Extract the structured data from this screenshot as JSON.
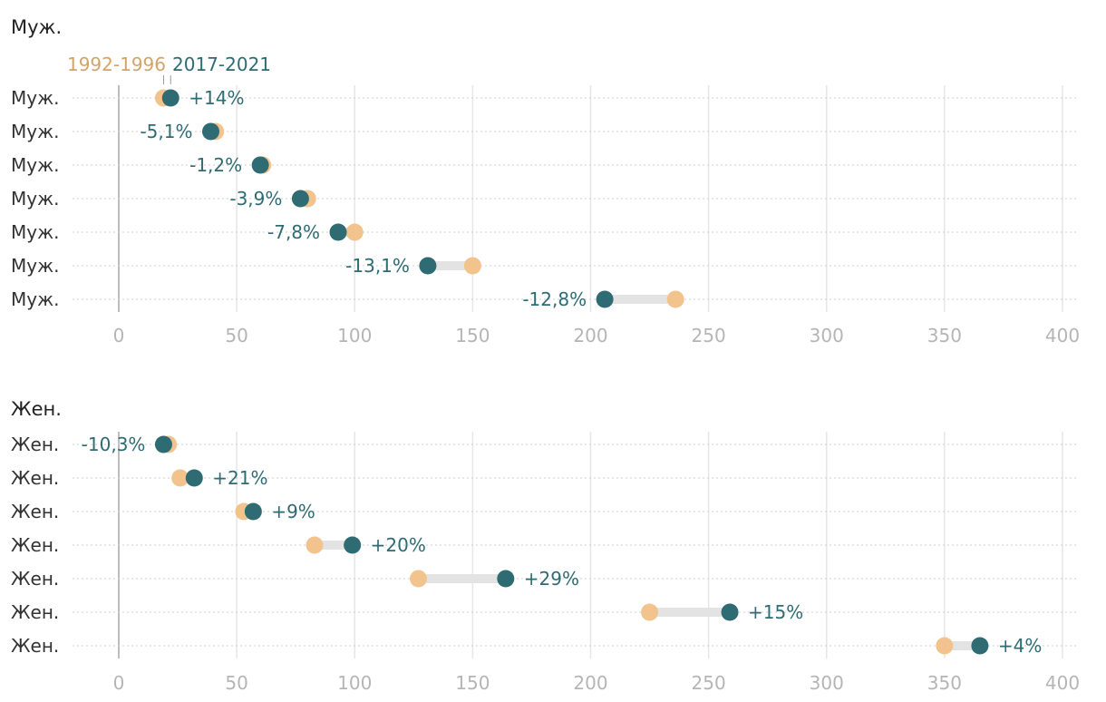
{
  "chart_data": [
    {
      "type": "dumbbell",
      "title": "Муж.",
      "legend": {
        "old_label": "1992-1996",
        "new_label": "2017-2021"
      },
      "colors": {
        "old": "#f2c38d",
        "new": "#2e6b73",
        "connector": "#e3e3e3"
      },
      "xlim": [
        0,
        400
      ],
      "xticks": [
        "0",
        "50",
        "100",
        "150",
        "200",
        "250",
        "300",
        "350",
        "400"
      ],
      "rows": [
        {
          "label": "Муж.",
          "old": 19,
          "new": 22,
          "change": "+14%"
        },
        {
          "label": "Муж.",
          "old": 41,
          "new": 39,
          "change": "-5,1%"
        },
        {
          "label": "Муж.",
          "old": 61,
          "new": 60,
          "change": "-1,2%"
        },
        {
          "label": "Муж.",
          "old": 80,
          "new": 77,
          "change": "-3,9%"
        },
        {
          "label": "Муж.",
          "old": 100,
          "new": 93,
          "change": "-7,8%"
        },
        {
          "label": "Муж.",
          "old": 150,
          "new": 131,
          "change": "-13,1%"
        },
        {
          "label": "Муж.",
          "old": 236,
          "new": 206,
          "change": "-12,8%"
        }
      ]
    },
    {
      "type": "dumbbell",
      "title": "Жен.",
      "colors": {
        "old": "#f2c38d",
        "new": "#2e6b73",
        "connector": "#e3e3e3"
      },
      "xlim": [
        0,
        400
      ],
      "xticks": [
        "0",
        "50",
        "100",
        "150",
        "200",
        "250",
        "300",
        "350",
        "400"
      ],
      "rows": [
        {
          "label": "Жен.",
          "old": 21,
          "new": 19,
          "change": "-10,3%"
        },
        {
          "label": "Жен.",
          "old": 26,
          "new": 32,
          "change": "+21%"
        },
        {
          "label": "Жен.",
          "old": 53,
          "new": 57,
          "change": "+9%"
        },
        {
          "label": "Жен.",
          "old": 83,
          "new": 99,
          "change": "+20%"
        },
        {
          "label": "Жен.",
          "old": 127,
          "new": 164,
          "change": "+29%"
        },
        {
          "label": "Жен.",
          "old": 225,
          "new": 259,
          "change": "+15%"
        },
        {
          "label": "Жен.",
          "old": 350,
          "new": 365,
          "change": "+4%"
        }
      ]
    }
  ]
}
